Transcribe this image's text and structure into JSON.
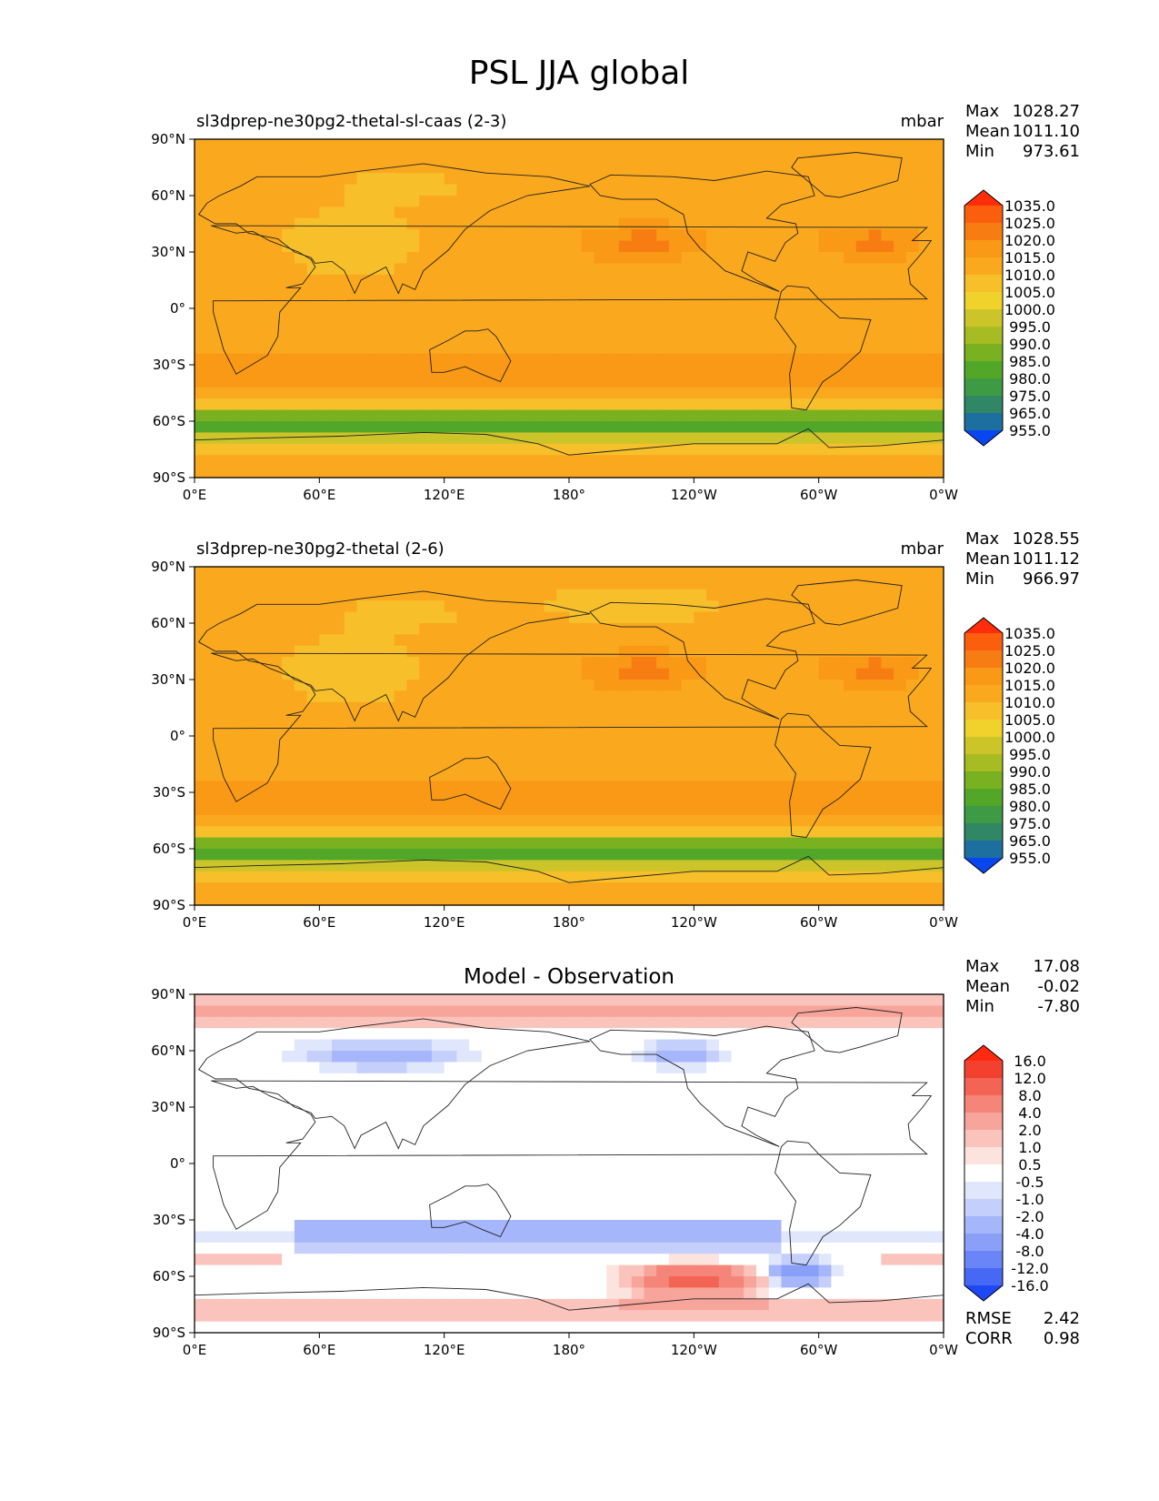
{
  "figure": {
    "title": "PSL JJA global"
  },
  "chart_data": [
    {
      "type": "heatmap",
      "title": "sl3dprep-ne30pg2-thetal-sl-caas (2-3)",
      "units": "mbar",
      "stats": {
        "labels": [
          "Max",
          "Mean",
          "Min"
        ],
        "values": [
          "1028.27",
          "1011.10",
          "973.61"
        ]
      },
      "colorbar": {
        "levels": [
          "1035.0",
          "1025.0",
          "1020.0",
          "1015.0",
          "1010.0",
          "1005.0",
          "1000.0",
          "995.0",
          "990.0",
          "985.0",
          "980.0",
          "975.0",
          "965.0",
          "955.0"
        ],
        "colors": [
          "#ff2d0a",
          "#fb5f0e",
          "#f77d12",
          "#f99916",
          "#faa81e",
          "#f7c02a",
          "#efd22c",
          "#cdc42a",
          "#a7bb22",
          "#79b121",
          "#52a729",
          "#3e9a44",
          "#318665",
          "#1d6fa0",
          "#0a46f0"
        ]
      },
      "x_ticks": [
        "0°E",
        "60°E",
        "120°E",
        "180°",
        "120°W",
        "60°W",
        "0°W"
      ],
      "y_ticks": [
        "90°N",
        "60°N",
        "30°N",
        "0°",
        "30°S",
        "60°S",
        "90°S"
      ],
      "xlim": [
        0,
        360
      ],
      "ylim": [
        -90,
        90
      ]
    },
    {
      "type": "heatmap",
      "title": "sl3dprep-ne30pg2-thetal (2-6)",
      "units": "mbar",
      "stats": {
        "labels": [
          "Max",
          "Mean",
          "Min"
        ],
        "values": [
          "1028.55",
          "1011.12",
          "966.97"
        ]
      },
      "colorbar": {
        "levels": [
          "1035.0",
          "1025.0",
          "1020.0",
          "1015.0",
          "1010.0",
          "1005.0",
          "1000.0",
          "995.0",
          "990.0",
          "985.0",
          "980.0",
          "975.0",
          "965.0",
          "955.0"
        ],
        "colors": [
          "#ff2d0a",
          "#fb5f0e",
          "#f77d12",
          "#f99916",
          "#faa81e",
          "#f7c02a",
          "#efd22c",
          "#cdc42a",
          "#a7bb22",
          "#79b121",
          "#52a729",
          "#3e9a44",
          "#318665",
          "#1d6fa0",
          "#0a46f0"
        ]
      },
      "x_ticks": [
        "0°E",
        "60°E",
        "120°E",
        "180°",
        "120°W",
        "60°W",
        "0°W"
      ],
      "y_ticks": [
        "90°N",
        "60°N",
        "30°N",
        "0°",
        "30°S",
        "60°S",
        "90°S"
      ],
      "xlim": [
        0,
        360
      ],
      "ylim": [
        -90,
        90
      ]
    },
    {
      "type": "heatmap",
      "title": "Model - Observation",
      "units": "",
      "stats": {
        "labels": [
          "Max",
          "Mean",
          "Min"
        ],
        "values": [
          "17.08",
          "-0.02",
          "-7.80"
        ]
      },
      "extra_stats": {
        "labels": [
          "RMSE",
          "CORR"
        ],
        "values": [
          "2.42",
          "0.98"
        ]
      },
      "colorbar": {
        "levels": [
          "16.0",
          "12.0",
          "8.0",
          "4.0",
          "2.0",
          "1.0",
          "0.5",
          "-0.5",
          "-1.0",
          "-2.0",
          "-4.0",
          "-8.0",
          "-12.0",
          "-16.0"
        ],
        "colors": [
          "#ff2a10",
          "#f4402e",
          "#f36454",
          "#f58578",
          "#f7a59b",
          "#fac4bc",
          "#fde3de",
          "#ffffff",
          "#e0e6fb",
          "#c4cffb",
          "#a5b6fa",
          "#8aa0f8",
          "#6a86f6",
          "#4768f5",
          "#1f48f5"
        ]
      },
      "x_ticks": [
        "0°E",
        "60°E",
        "120°E",
        "180°",
        "120°W",
        "60°W",
        "0°W"
      ],
      "y_ticks": [
        "90°N",
        "60°N",
        "30°N",
        "0°",
        "30°S",
        "60°S",
        "90°S"
      ],
      "xlim": [
        0,
        360
      ],
      "ylim": [
        -90,
        90
      ]
    }
  ]
}
